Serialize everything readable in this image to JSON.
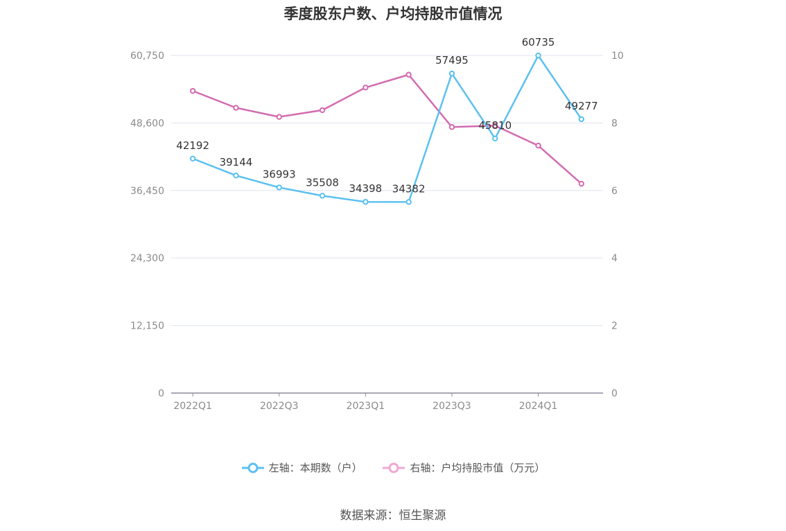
{
  "chart_data": {
    "type": "line",
    "title": "季度股东户数、户均持股市值情况",
    "categories": [
      "2022Q1",
      "2022Q2",
      "2022Q3",
      "2022Q4",
      "2023Q1",
      "2023Q2",
      "2023Q3",
      "2023Q4",
      "2024Q1",
      "2024Q2"
    ],
    "x_tick_labels": [
      "2022Q1",
      "2022Q3",
      "2023Q1",
      "2023Q3",
      "2024Q1"
    ],
    "left_axis": {
      "ticks": [
        "0",
        "12,150",
        "24,300",
        "36,450",
        "48,600",
        "60,750"
      ],
      "ylim": [
        0,
        60750
      ]
    },
    "right_axis": {
      "ticks": [
        "0",
        "2",
        "4",
        "6",
        "8",
        "10"
      ],
      "ylim": [
        0,
        10
      ]
    },
    "series": [
      {
        "name": "左轴：本期数（户）",
        "axis": "left",
        "color": "#5bc0f0",
        "values": [
          42192,
          39144,
          36993,
          35508,
          34398,
          34382,
          57495,
          45810,
          60735,
          49277
        ],
        "labels": [
          "42192",
          "39144",
          "36993",
          "35508",
          "34398",
          "34382",
          "57495",
          "45810",
          "60735",
          "49277"
        ]
      },
      {
        "name": "右轴：户均持股市值（万元）",
        "axis": "right",
        "color": "#d36bb0",
        "values": [
          8.95,
          8.45,
          8.18,
          8.38,
          9.05,
          9.43,
          7.88,
          7.92,
          7.33,
          6.2
        ]
      }
    ],
    "legend_position": "bottom",
    "grid": true
  },
  "source": "数据来源：恒生聚源"
}
